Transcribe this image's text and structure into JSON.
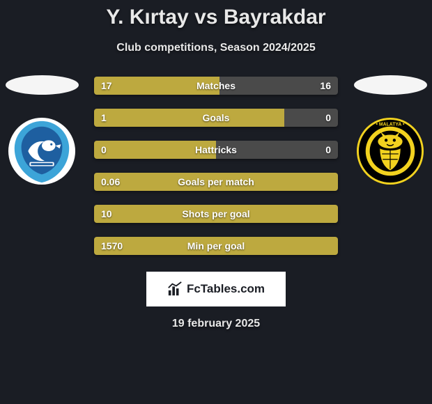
{
  "title": "Y. Kırtay vs Bayrakdar",
  "subtitle": "Club competitions, Season 2024/2025",
  "date": "19 february 2025",
  "brand": "FcTables.com",
  "colors": {
    "background": "#1a1d24",
    "left_fill": "#bda93f",
    "right_fill": "#4a4a4a",
    "text": "#f0f0f0"
  },
  "stats": [
    {
      "label": "Matches",
      "left_value": "17",
      "right_value": "16",
      "left_pct": 51.5
    },
    {
      "label": "Goals",
      "left_value": "1",
      "right_value": "0",
      "left_pct": 78
    },
    {
      "label": "Hattricks",
      "left_value": "0",
      "right_value": "0",
      "left_pct": 50
    },
    {
      "label": "Goals per match",
      "left_value": "0.06",
      "right_value": "",
      "left_pct": 100
    },
    {
      "label": "Shots per goal",
      "left_value": "10",
      "right_value": "",
      "left_pct": 100
    },
    {
      "label": "Min per goal",
      "left_value": "1570",
      "right_value": "",
      "left_pct": 100
    }
  ],
  "clubs": {
    "left": {
      "name": "erzurumspor",
      "base": "#3ca4d8",
      "accent": "#ffffff"
    },
    "right": {
      "name": "malatyaspor",
      "base": "#f2d21f",
      "accent": "#000000"
    }
  }
}
